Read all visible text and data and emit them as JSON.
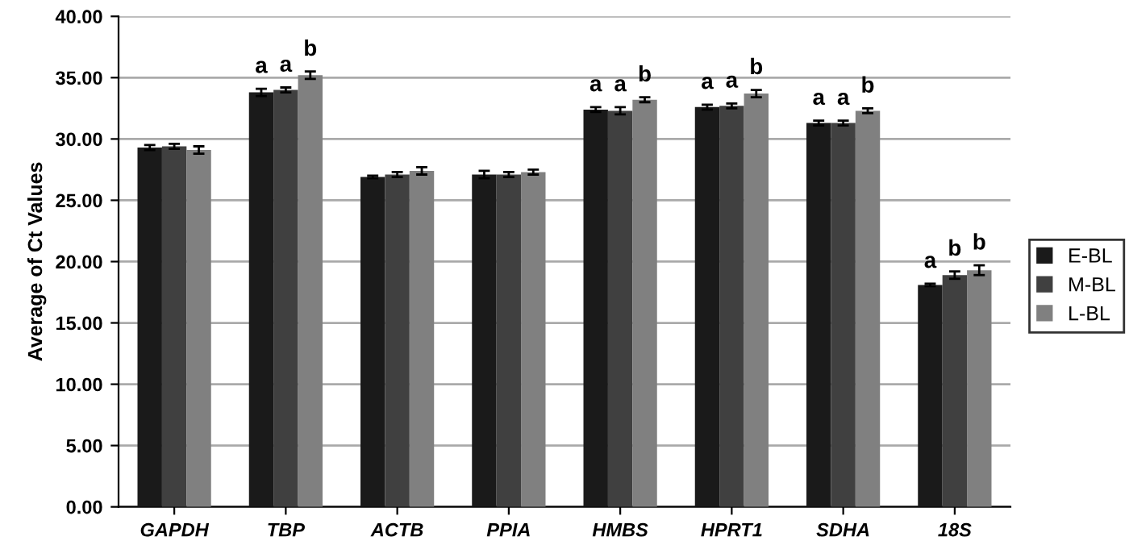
{
  "chart_data": {
    "type": "bar",
    "ylabel": "Average of Ct Values",
    "categories": [
      "GAPDH",
      "TBP",
      "ACTB",
      "PPIA",
      "HMBS",
      "HPRT1",
      "SDHA",
      "18S"
    ],
    "series": [
      {
        "name": "E-BL",
        "color": "#1a1a1a",
        "values": [
          29.3,
          33.8,
          26.9,
          27.1,
          32.4,
          32.6,
          31.3,
          18.1
        ],
        "errors": [
          0.2,
          0.3,
          0.1,
          0.3,
          0.2,
          0.2,
          0.2,
          0.1
        ],
        "value_labels": [
          null,
          "a",
          null,
          null,
          "a",
          "a",
          "a",
          "a"
        ]
      },
      {
        "name": "M-BL",
        "color": "#404040",
        "values": [
          29.4,
          34.0,
          27.1,
          27.1,
          32.3,
          32.7,
          31.3,
          18.9
        ],
        "errors": [
          0.2,
          0.2,
          0.2,
          0.2,
          0.3,
          0.2,
          0.2,
          0.3
        ],
        "value_labels": [
          null,
          "a",
          null,
          null,
          "a",
          "a",
          "a",
          "b"
        ]
      },
      {
        "name": "L-BL",
        "color": "#808080",
        "values": [
          29.1,
          35.2,
          27.4,
          27.3,
          33.2,
          33.7,
          32.3,
          19.3
        ],
        "errors": [
          0.3,
          0.3,
          0.3,
          0.2,
          0.2,
          0.3,
          0.2,
          0.4
        ],
        "value_labels": [
          null,
          "b",
          null,
          null,
          "b",
          "b",
          "b",
          "b"
        ]
      }
    ],
    "ylim": [
      0,
      40
    ],
    "yticks": [
      {
        "value": 0,
        "label": "0.00"
      },
      {
        "value": 5,
        "label": "5.00"
      },
      {
        "value": 10,
        "label": "10.00"
      },
      {
        "value": 15,
        "label": "15.00"
      },
      {
        "value": 20,
        "label": "20.00"
      },
      {
        "value": 25,
        "label": "25.00"
      },
      {
        "value": 30,
        "label": "30.00"
      },
      {
        "value": 35,
        "label": "35.00"
      },
      {
        "value": 40,
        "label": "40.00"
      }
    ],
    "grid": "y",
    "legend": "right"
  }
}
